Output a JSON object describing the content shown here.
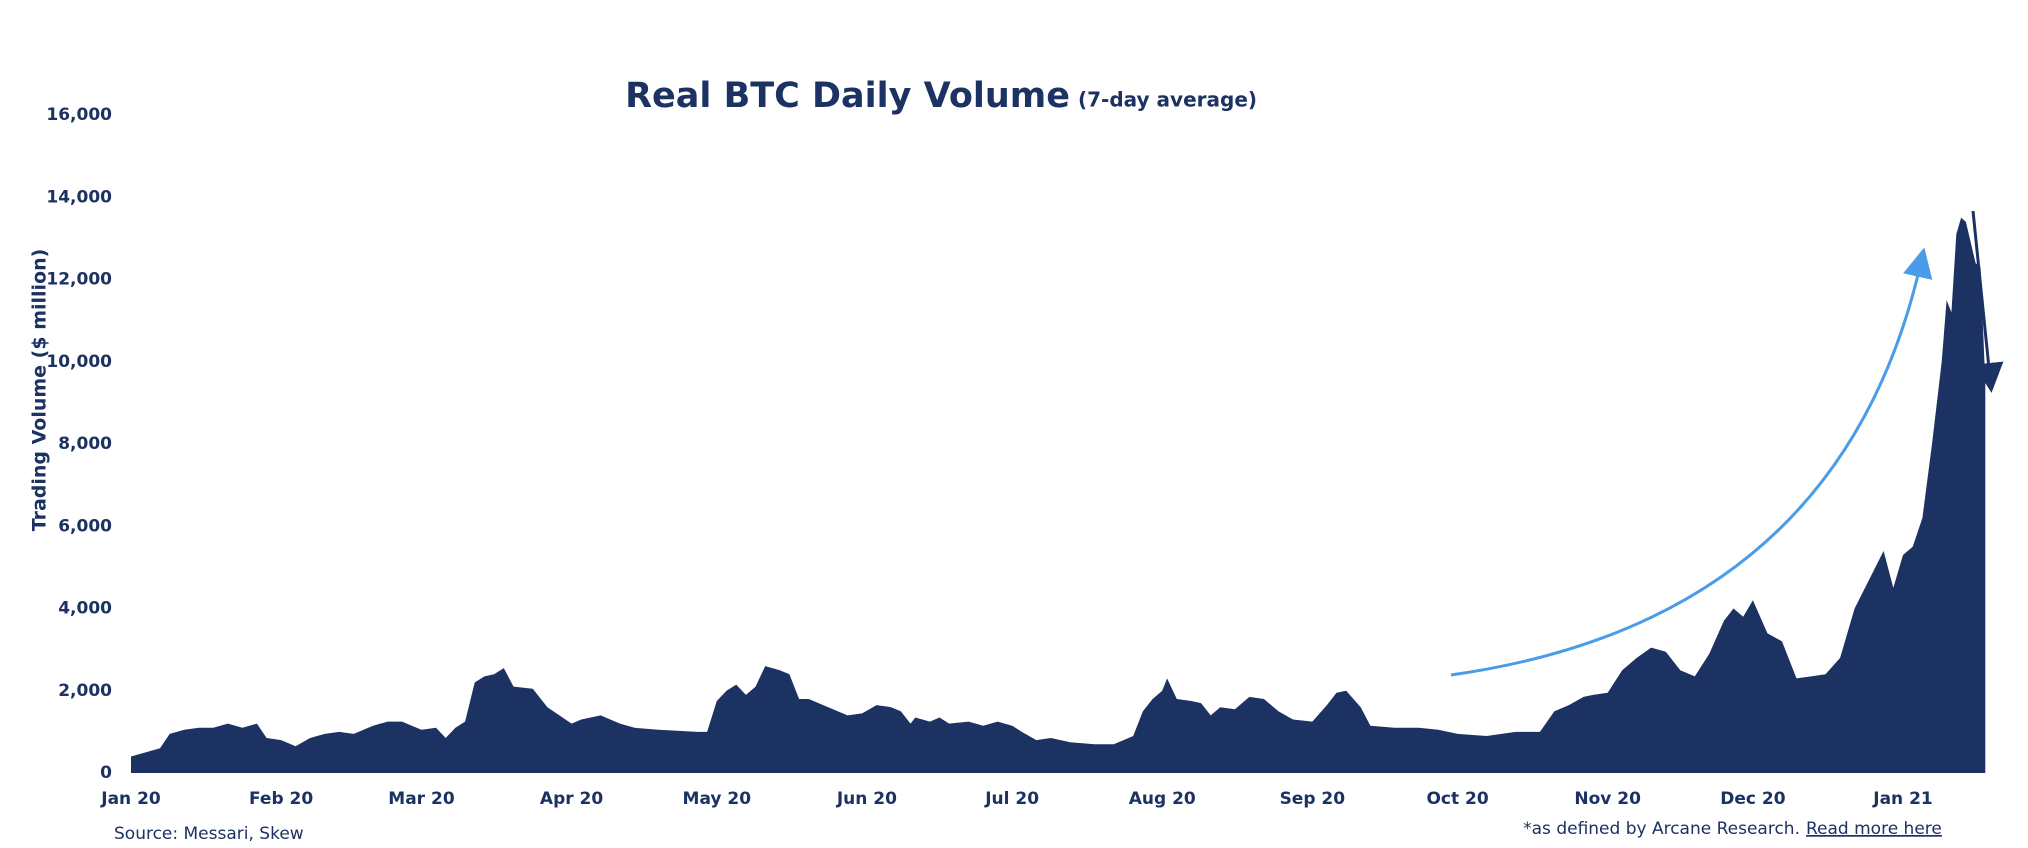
{
  "chart_data": {
    "type": "area",
    "title": "Real BTC Daily Volume",
    "subtitle": "(7-day average)",
    "y_label": "Trading Volume ($ million)",
    "source": "Source: Messari, Skew",
    "footnote": "*as defined by Arcane Research.",
    "link_text": "Read more here",
    "color": "#1b3263",
    "annotation_color": "#4a9be8",
    "xlim": [
      0,
      383
    ],
    "xticks": [
      {
        "value": 0,
        "label": "Jan 20"
      },
      {
        "value": 31,
        "label": "Feb 20"
      },
      {
        "value": 60,
        "label": "Mar 20"
      },
      {
        "value": 91,
        "label": "Apr 20"
      },
      {
        "value": 121,
        "label": "May 20"
      },
      {
        "value": 152,
        "label": "Jun 20"
      },
      {
        "value": 182,
        "label": "Jul 20"
      },
      {
        "value": 213,
        "label": "Aug 20"
      },
      {
        "value": 244,
        "label": "Sep 20"
      },
      {
        "value": 274,
        "label": "Oct 20"
      },
      {
        "value": 305,
        "label": "Nov 20"
      },
      {
        "value": 335,
        "label": "Dec 20"
      },
      {
        "value": 366,
        "label": "Jan 21"
      }
    ],
    "ylim": [
      0,
      16000
    ],
    "yticks": [
      0,
      {
        "value": 2000,
        "label": "2,000"
      },
      {
        "value": 4000,
        "label": "4,000"
      },
      {
        "value": 6000,
        "label": "6,000"
      },
      {
        "value": 8000,
        "label": "8,000"
      },
      {
        "value": 10000,
        "label": "10,000"
      },
      {
        "value": 12000,
        "label": "12,000"
      },
      {
        "value": 14000,
        "label": "14,000"
      },
      {
        "value": 16000,
        "label": "16,000"
      }
    ],
    "grid": false,
    "x": [
      0,
      3,
      6,
      8,
      11,
      14,
      17,
      20,
      23,
      26,
      28,
      31,
      34,
      37,
      40,
      43,
      46,
      50,
      53,
      56,
      58,
      60,
      63,
      65,
      67,
      69,
      71,
      73,
      75,
      77,
      79,
      83,
      86,
      91,
      93,
      97,
      101,
      104,
      109,
      117,
      119,
      121,
      123,
      125,
      127,
      129,
      131,
      134,
      136,
      138,
      140,
      144,
      145,
      148,
      151,
      154,
      157,
      159,
      161,
      162,
      165,
      167,
      169,
      173,
      176,
      179,
      182,
      184,
      187,
      190,
      194,
      199,
      203,
      207,
      209,
      211,
      213,
      214,
      216,
      219,
      221,
      223,
      225,
      228,
      231,
      234,
      237,
      240,
      244,
      247,
      249,
      251,
      254,
      256,
      261,
      266,
      270,
      274,
      280,
      286,
      291,
      294,
      297,
      300,
      302,
      305,
      308,
      311,
      314,
      317,
      320,
      323,
      326,
      329,
      331,
      333,
      335,
      338,
      341,
      344,
      347,
      350,
      353,
      356,
      359,
      362,
      364,
      366,
      368,
      370,
      372,
      374,
      375,
      376,
      377,
      378,
      379,
      381,
      382,
      383
    ],
    "values": [
      400,
      500,
      600,
      950,
      1050,
      1100,
      1100,
      1200,
      1100,
      1200,
      850,
      800,
      650,
      850,
      950,
      1000,
      950,
      1150,
      1250,
      1250,
      1150,
      1050,
      1100,
      850,
      1100,
      1250,
      2200,
      2350,
      2400,
      2550,
      2100,
      2050,
      1600,
      1200,
      1300,
      1400,
      1200,
      1100,
      1050,
      1000,
      1000,
      1750,
      2000,
      2150,
      1900,
      2100,
      2600,
      2500,
      2400,
      1800,
      1800,
      1600,
      1550,
      1400,
      1450,
      1650,
      1600,
      1500,
      1200,
      1350,
      1250,
      1350,
      1200,
      1250,
      1150,
      1250,
      1150,
      1000,
      800,
      850,
      750,
      700,
      700,
      900,
      1500,
      1800,
      2000,
      2300,
      1800,
      1750,
      1700,
      1400,
      1600,
      1550,
      1850,
      1800,
      1500,
      1300,
      1250,
      1650,
      1950,
      2000,
      1600,
      1150,
      1100,
      1100,
      1050,
      950,
      900,
      1000,
      1000,
      1500,
      1650,
      1850,
      1900,
      1950,
      2500,
      2800,
      3050,
      2950,
      2500,
      2350,
      2900,
      3700,
      4000,
      3800,
      4200,
      3400,
      3200,
      2300,
      2350,
      2400,
      2800,
      4000,
      4700,
      5400,
      4500,
      5300,
      5500,
      6200,
      8000,
      10000,
      11500,
      11200,
      13100,
      13500,
      13400,
      12400,
      12300,
      9500
    ]
  }
}
